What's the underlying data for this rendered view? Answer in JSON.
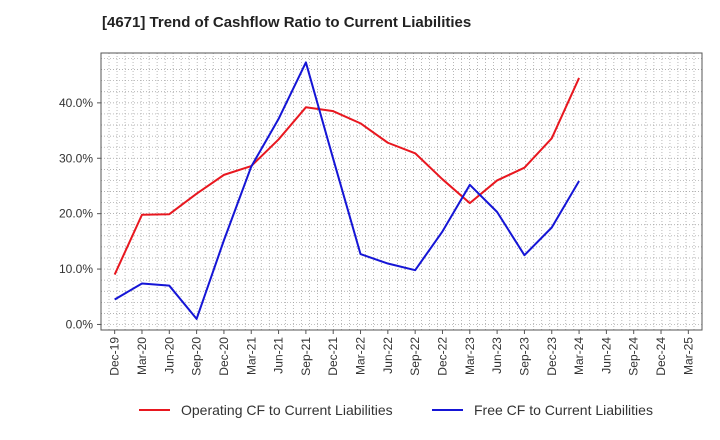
{
  "chart_data": {
    "type": "line",
    "title": "[4671]  Trend of Cashflow Ratio to Current Liabilities",
    "xlabel": "",
    "ylabel": "",
    "x": [
      "Dec-19",
      "Mar-20",
      "Jun-20",
      "Sep-20",
      "Dec-20",
      "Mar-21",
      "Jun-21",
      "Sep-21",
      "Dec-21",
      "Mar-22",
      "Jun-22",
      "Sep-22",
      "Dec-22",
      "Mar-23",
      "Jun-23",
      "Sep-23",
      "Dec-23",
      "Mar-24",
      "Jun-24",
      "Sep-24",
      "Dec-24",
      "Mar-25"
    ],
    "ylim": [
      -1,
      49
    ],
    "yticks": [
      0,
      10,
      20,
      30,
      40
    ],
    "ytick_labels": [
      "0.0%",
      "10.0%",
      "20.0%",
      "30.0%",
      "40.0%"
    ],
    "grid": true,
    "legend_position": "bottom",
    "series": [
      {
        "name": "Operating CF to Current Liabilities",
        "color": "#e8171f",
        "values": [
          9.0,
          19.8,
          19.9,
          23.6,
          27.0,
          28.6,
          33.4,
          39.2,
          38.5,
          36.3,
          32.8,
          30.9,
          26.2,
          21.9,
          26.0,
          28.3,
          33.6,
          44.5,
          null,
          null,
          null,
          null
        ]
      },
      {
        "name": "Free CF to Current Liabilities",
        "color": "#1515d6",
        "values": [
          4.5,
          7.4,
          7.0,
          1.0,
          15.2,
          28.5,
          37.1,
          47.3,
          29.9,
          12.7,
          11.0,
          9.8,
          16.8,
          25.2,
          20.3,
          12.5,
          17.5,
          25.9,
          null,
          null,
          null,
          null
        ]
      }
    ]
  }
}
